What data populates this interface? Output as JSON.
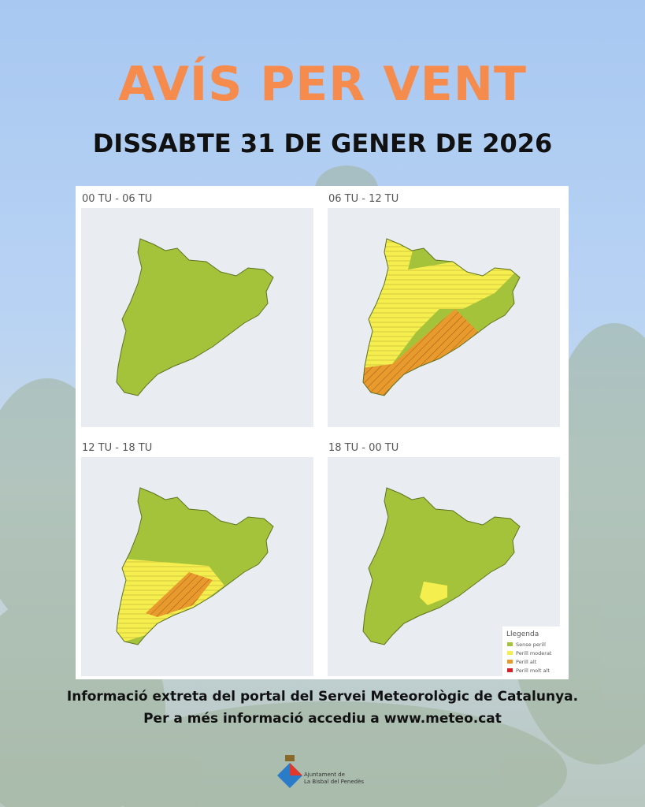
{
  "header": {
    "title": "AVÍS PER VENT",
    "subtitle": "DISSABTE 31 DE GENER DE 2026"
  },
  "panels": [
    {
      "label": "00 TU - 06 TU"
    },
    {
      "label": "06 TU - 12 TU"
    },
    {
      "label": "12 TU - 18 TU"
    },
    {
      "label": "18 TU - 00 TU"
    }
  ],
  "legend": {
    "title": "Llegenda",
    "items": [
      "Sense perill",
      "Perill moderat",
      "Perill alt",
      "Perill molt alt"
    ]
  },
  "footer": {
    "line1": "Informació extreta del portal del Servei Meteorològic de Catalunya.",
    "line2": "Per a més informació accediu a www.meteo.cat"
  },
  "logo": {
    "line1": "Ajuntament de",
    "line2": "La Bisbal del Penedès"
  }
}
